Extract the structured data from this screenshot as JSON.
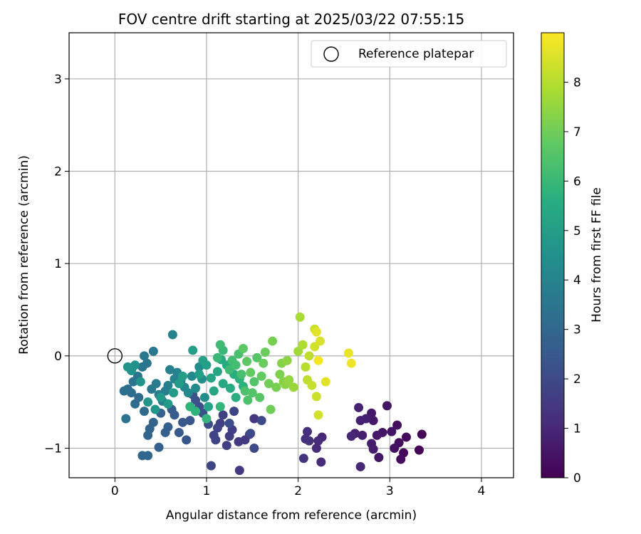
{
  "chart_data": {
    "type": "scatter",
    "title": "FOV centre drift starting at 2025/03/22 07:55:15",
    "xlabel": "Angular distance from reference (arcmin)",
    "ylabel": "Rotation from reference (arcmin)",
    "xlim": [
      -0.5,
      4.35
    ],
    "ylim": [
      -1.32,
      3.5
    ],
    "xticks": [
      0,
      1,
      2,
      3,
      4
    ],
    "yticks": [
      -1,
      0,
      1,
      2,
      3
    ],
    "grid": true,
    "legend": {
      "position": "top-right",
      "entries": [
        "Reference platepar"
      ]
    },
    "reference_point": {
      "x": 0,
      "y": 0
    },
    "colorbar": {
      "label": "Hours from first FF file",
      "range": [
        0,
        9
      ],
      "ticks": [
        0,
        1,
        2,
        3,
        4,
        5,
        6,
        7,
        8
      ],
      "colormap": "viridis"
    },
    "points": [
      [
        3.35,
        -0.85,
        0.1
      ],
      [
        3.32,
        -1.02,
        0.1
      ],
      [
        3.18,
        -0.88,
        0.2
      ],
      [
        3.15,
        -1.05,
        0.2
      ],
      [
        3.1,
        -0.94,
        0.3
      ],
      [
        3.12,
        -1.12,
        0.3
      ],
      [
        3.08,
        -0.75,
        0.3
      ],
      [
        3.05,
        -1.0,
        0.4
      ],
      [
        3.02,
        -0.82,
        0.4
      ],
      [
        2.97,
        -0.54,
        0.5
      ],
      [
        2.92,
        -0.83,
        0.5
      ],
      [
        2.88,
        -1.1,
        0.5
      ],
      [
        2.86,
        -0.86,
        0.6
      ],
      [
        2.82,
        -0.7,
        0.6
      ],
      [
        2.8,
        -0.62,
        0.6
      ],
      [
        2.8,
        -0.95,
        0.7
      ],
      [
        2.82,
        -1.01,
        0.7
      ],
      [
        2.74,
        -0.68,
        0.8
      ],
      [
        2.7,
        -0.86,
        0.8
      ],
      [
        2.68,
        -0.7,
        0.8
      ],
      [
        2.66,
        -0.56,
        0.9
      ],
      [
        2.62,
        -0.84,
        0.9
      ],
      [
        2.58,
        -0.87,
        1.0
      ],
      [
        2.68,
        -1.2,
        1.0
      ],
      [
        2.26,
        -0.88,
        1.0
      ],
      [
        2.22,
        -0.92,
        1.1
      ],
      [
        2.2,
        -1.0,
        1.1
      ],
      [
        2.25,
        -1.15,
        1.1
      ],
      [
        2.1,
        -0.82,
        1.2
      ],
      [
        2.08,
        -0.9,
        1.2
      ],
      [
        2.06,
        -1.11,
        1.3
      ],
      [
        2.12,
        -0.92,
        1.3
      ],
      [
        1.52,
        -0.68,
        1.4
      ],
      [
        1.47,
        -0.85,
        1.4
      ],
      [
        1.42,
        -0.91,
        1.5
      ],
      [
        1.35,
        -0.93,
        1.5
      ],
      [
        1.36,
        -1.24,
        1.5
      ],
      [
        1.28,
        -0.8,
        1.6
      ],
      [
        1.25,
        -0.87,
        1.6
      ],
      [
        1.22,
        -0.97,
        1.7
      ],
      [
        1.18,
        -0.64,
        1.7
      ],
      [
        1.15,
        -0.73,
        1.7
      ],
      [
        1.12,
        -0.78,
        1.8
      ],
      [
        1.08,
        -0.86,
        1.8
      ],
      [
        1.1,
        -0.91,
        1.8
      ],
      [
        1.05,
        -1.19,
        1.9
      ],
      [
        1.3,
        -0.6,
        1.9
      ],
      [
        1.52,
        -1.0,
        2.0
      ],
      [
        1.6,
        -0.7,
        2.0
      ],
      [
        1.48,
        -0.84,
        2.0
      ],
      [
        1.25,
        -0.73,
        2.1
      ],
      [
        1.02,
        -0.74,
        2.1
      ],
      [
        0.96,
        -0.62,
        2.2
      ],
      [
        0.92,
        -0.55,
        2.2
      ],
      [
        0.88,
        -0.48,
        2.3
      ],
      [
        0.85,
        -0.42,
        2.3
      ],
      [
        0.82,
        -0.7,
        2.4
      ],
      [
        0.78,
        -0.91,
        2.4
      ],
      [
        0.74,
        -0.72,
        2.5
      ],
      [
        0.7,
        -0.83,
        2.5
      ],
      [
        0.65,
        -0.64,
        2.6
      ],
      [
        0.62,
        -0.58,
        2.6
      ],
      [
        0.58,
        -0.77,
        2.7
      ],
      [
        0.55,
        -0.83,
        2.7
      ],
      [
        0.5,
        -0.62,
        2.8
      ],
      [
        0.48,
        -0.99,
        2.8
      ],
      [
        0.42,
        -0.72,
        2.9
      ],
      [
        0.38,
        -0.79,
        2.9
      ],
      [
        0.36,
        -0.86,
        3.0
      ],
      [
        0.3,
        -1.08,
        3.0
      ],
      [
        0.36,
        -1.08,
        3.0
      ],
      [
        0.32,
        -0.6,
        3.1
      ],
      [
        0.26,
        -0.45,
        3.1
      ],
      [
        0.22,
        -0.52,
        3.2
      ],
      [
        0.18,
        -0.4,
        3.2
      ],
      [
        0.14,
        -0.36,
        3.3
      ],
      [
        0.1,
        -0.38,
        3.3
      ],
      [
        0.12,
        -0.68,
        3.4
      ],
      [
        0.2,
        -0.28,
        3.4
      ],
      [
        0.25,
        -0.22,
        3.5
      ],
      [
        0.3,
        -0.12,
        3.5
      ],
      [
        0.35,
        -0.08,
        3.5
      ],
      [
        0.32,
        0.0,
        3.6
      ],
      [
        0.4,
        -0.36,
        3.6
      ],
      [
        0.42,
        0.05,
        3.6
      ],
      [
        0.45,
        -0.3,
        3.7
      ],
      [
        0.48,
        -0.42,
        3.7
      ],
      [
        0.52,
        -0.49,
        3.8
      ],
      [
        0.55,
        -0.38,
        3.8
      ],
      [
        0.58,
        -0.32,
        3.9
      ],
      [
        0.6,
        -0.15,
        3.9
      ],
      [
        0.63,
        0.23,
        4.0
      ],
      [
        0.65,
        -0.25,
        4.0
      ],
      [
        0.68,
        -0.18,
        4.0
      ],
      [
        0.72,
        -0.27,
        4.1
      ],
      [
        0.76,
        -0.34,
        4.1
      ],
      [
        0.8,
        -0.4,
        4.2
      ],
      [
        0.84,
        -0.22,
        4.2
      ],
      [
        0.88,
        -0.35,
        4.3
      ],
      [
        0.92,
        -0.12,
        4.3
      ],
      [
        0.95,
        -0.25,
        4.4
      ],
      [
        0.98,
        -0.45,
        4.4
      ],
      [
        0.22,
        -0.1,
        4.5
      ],
      [
        0.18,
        -0.16,
        4.5
      ],
      [
        0.14,
        -0.12,
        4.6
      ],
      [
        0.28,
        -0.28,
        4.6
      ],
      [
        0.36,
        -0.5,
        4.7
      ],
      [
        0.44,
        -0.58,
        4.7
      ],
      [
        0.5,
        -0.45,
        4.8
      ],
      [
        0.58,
        -0.52,
        4.8
      ],
      [
        0.64,
        -0.4,
        4.9
      ],
      [
        0.7,
        -0.3,
        4.9
      ],
      [
        0.74,
        -0.22,
        5.0
      ],
      [
        0.85,
        0.06,
        5.0
      ],
      [
        0.92,
        -0.2,
        5.0
      ],
      [
        0.96,
        -0.05,
        5.1
      ],
      [
        1.0,
        -0.1,
        5.1
      ],
      [
        1.02,
        -0.55,
        5.2
      ],
      [
        1.05,
        -0.24,
        5.2
      ],
      [
        1.08,
        -0.38,
        5.3
      ],
      [
        1.12,
        -0.17,
        5.3
      ],
      [
        1.16,
        -0.04,
        5.4
      ],
      [
        1.18,
        -0.3,
        5.4
      ],
      [
        1.22,
        -0.1,
        5.5
      ],
      [
        1.26,
        -0.35,
        5.5
      ],
      [
        1.3,
        -0.2,
        5.6
      ],
      [
        1.32,
        -0.45,
        5.6
      ],
      [
        1.36,
        -0.25,
        5.7
      ],
      [
        1.4,
        -0.33,
        5.7
      ],
      [
        0.88,
        -0.6,
        5.8
      ],
      [
        0.82,
        -0.55,
        5.8
      ],
      [
        1.0,
        -0.68,
        5.9
      ],
      [
        1.15,
        -0.55,
        5.9
      ],
      [
        1.12,
        -0.02,
        6.0
      ],
      [
        1.18,
        0.06,
        6.0
      ],
      [
        1.15,
        0.12,
        6.1
      ],
      [
        1.25,
        -0.15,
        6.1
      ],
      [
        1.28,
        -0.05,
        6.2
      ],
      [
        1.32,
        -0.1,
        6.2
      ],
      [
        1.35,
        0.02,
        6.3
      ],
      [
        1.38,
        -0.2,
        6.3
      ],
      [
        1.42,
        -0.38,
        6.4
      ],
      [
        1.45,
        -0.48,
        6.4
      ],
      [
        1.5,
        -0.4,
        6.5
      ],
      [
        1.52,
        -0.28,
        6.5
      ],
      [
        1.55,
        -0.02,
        6.6
      ],
      [
        1.58,
        -0.45,
        6.6
      ],
      [
        1.4,
        0.08,
        6.7
      ],
      [
        1.44,
        -0.06,
        6.7
      ],
      [
        1.48,
        -0.18,
        6.8
      ],
      [
        1.6,
        -0.22,
        6.8
      ],
      [
        1.62,
        -0.08,
        6.9
      ],
      [
        1.64,
        0.04,
        6.9
      ],
      [
        1.68,
        -0.3,
        7.0
      ],
      [
        1.7,
        -0.58,
        7.0
      ],
      [
        1.72,
        0.16,
        7.1
      ],
      [
        1.76,
        -0.34,
        7.1
      ],
      [
        1.8,
        -0.2,
        7.2
      ],
      [
        1.82,
        -0.08,
        7.3
      ],
      [
        1.84,
        -0.28,
        7.3
      ],
      [
        1.86,
        -0.31,
        7.4
      ],
      [
        1.88,
        -0.05,
        7.4
      ],
      [
        1.9,
        -0.26,
        7.5
      ],
      [
        1.95,
        -0.34,
        7.6
      ],
      [
        2.0,
        0.05,
        7.7
      ],
      [
        2.02,
        0.42,
        7.8
      ],
      [
        2.05,
        0.12,
        7.9
      ],
      [
        2.08,
        -0.12,
        8.0
      ],
      [
        2.1,
        -0.26,
        8.1
      ],
      [
        2.12,
        0.0,
        8.1
      ],
      [
        2.15,
        -0.32,
        8.2
      ],
      [
        2.18,
        0.29,
        8.3
      ],
      [
        2.2,
        -0.44,
        8.3
      ],
      [
        2.22,
        -0.64,
        8.4
      ],
      [
        2.18,
        0.1,
        8.4
      ],
      [
        2.24,
        0.16,
        8.5
      ],
      [
        2.3,
        -0.28,
        8.6
      ],
      [
        2.2,
        0.26,
        8.6
      ],
      [
        2.55,
        0.03,
        8.7
      ],
      [
        2.58,
        -0.08,
        8.8
      ],
      [
        2.22,
        -0.05,
        8.9
      ]
    ]
  }
}
